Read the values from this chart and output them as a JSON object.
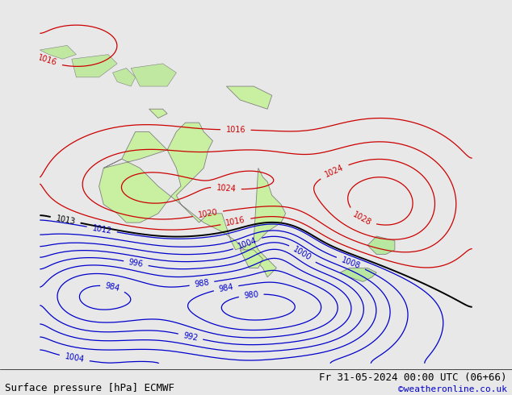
{
  "title_left": "Surface pressure [hPa] ECMWF",
  "title_right": "Fr 31-05-2024 00:00 UTC (06+66)",
  "credit": "©weatheronline.co.uk",
  "bg_color": "#e8e8e8",
  "land_color": "#c8f0a0",
  "land_edge_color": "#808080",
  "isobar_red_color": "#cc0000",
  "isobar_blue_color": "#0000cc",
  "isobar_black_color": "#000000",
  "label_fontsize": 7,
  "title_fontsize": 9,
  "credit_fontsize": 8,
  "figsize": [
    6.34,
    4.9
  ],
  "dpi": 100,
  "lon_min": 100,
  "lon_max": 195,
  "lat_min": -65,
  "lat_max": 15,
  "pressure_centers": [
    {
      "lon": 123,
      "lat": -28,
      "amp": 13,
      "sx": 14,
      "sy": 9,
      "sign": 1
    },
    {
      "lon": 148,
      "lat": -24,
      "amp": 8,
      "sx": 9,
      "sy": 6,
      "sign": 1
    },
    {
      "lon": 175,
      "lat": -30,
      "amp": 18,
      "sx": 12,
      "sy": 10,
      "sign": 1
    },
    {
      "lon": 112,
      "lat": -50,
      "amp": 30,
      "sx": 14,
      "sy": 9,
      "sign": -1
    },
    {
      "lon": 143,
      "lat": -53,
      "amp": 28,
      "sx": 12,
      "sy": 8,
      "sign": -1
    },
    {
      "lon": 163,
      "lat": -52,
      "amp": 22,
      "sx": 11,
      "sy": 8,
      "sign": -1
    },
    {
      "lon": 152,
      "lat": -40,
      "amp": 10,
      "sx": 5,
      "sy": 4,
      "sign": -1
    },
    {
      "lon": 108,
      "lat": 5,
      "amp": 4,
      "sx": 12,
      "sy": 6,
      "sign": 1
    }
  ],
  "australia_lon": [
    114,
    118,
    121,
    124,
    128,
    122,
    114,
    113,
    114,
    117,
    119,
    122,
    126,
    129,
    131,
    130,
    128,
    130,
    132,
    135,
    136,
    138,
    137,
    136,
    130,
    131,
    135,
    137,
    140,
    142,
    143,
    148,
    150,
    153,
    154,
    153,
    151,
    150,
    149,
    148,
    147,
    148,
    150,
    152,
    150,
    149,
    147,
    145,
    143,
    140,
    136,
    131,
    126,
    122,
    118,
    114
  ],
  "australia_lat": [
    -22,
    -20,
    -14,
    -14,
    -18,
    -20,
    -22,
    -26,
    -30,
    -32,
    -34,
    -34,
    -32,
    -28,
    -26,
    -22,
    -18,
    -14,
    -12,
    -12,
    -14,
    -16,
    -18,
    -22,
    -28,
    -30,
    -34,
    -32,
    -32,
    -38,
    -40,
    -38,
    -36,
    -34,
    -32,
    -30,
    -28,
    -25,
    -24,
    -22,
    -38,
    -40,
    -42,
    -44,
    -46,
    -44,
    -42,
    -40,
    -38,
    -36,
    -34,
    -30,
    -26,
    -22,
    -20,
    -22
  ],
  "tasmania_lon": [
    144,
    147,
    149,
    148,
    146,
    144
  ],
  "tasmania_lat": [
    -40,
    -40,
    -42,
    -44,
    -44,
    -40
  ],
  "nz_north_lon": [
    174,
    178,
    178,
    176,
    174,
    172,
    174
  ],
  "nz_north_lat": [
    -37,
    -38,
    -40,
    -41,
    -41,
    -39,
    -37
  ],
  "nz_south_lon": [
    168,
    172,
    174,
    173,
    171,
    168,
    166,
    168
  ],
  "nz_south_lat": [
    -44,
    -44,
    -45,
    -46,
    -47,
    -46,
    -45,
    -44
  ],
  "png_lon": [
    141,
    147,
    151,
    150,
    147,
    144,
    141
  ],
  "png_lat": [
    -4,
    -4,
    -6,
    -9,
    -8,
    -7,
    -4
  ],
  "timor_lon": [
    124,
    127,
    128,
    126,
    124
  ],
  "timor_lat": [
    -9,
    -9,
    -10,
    -11,
    -9
  ],
  "islands_top": [
    {
      "lons": [
        100,
        106,
        108,
        105,
        102,
        100
      ],
      "lats": [
        4,
        5,
        3,
        2,
        3,
        4
      ]
    },
    {
      "lons": [
        107,
        115,
        117,
        113,
        108,
        107
      ],
      "lats": [
        2,
        3,
        1,
        -2,
        -2,
        2
      ]
    },
    {
      "lons": [
        116,
        119,
        121,
        120,
        117,
        116
      ],
      "lats": [
        -1,
        0,
        -2,
        -4,
        -3,
        -1
      ]
    },
    {
      "lons": [
        120,
        127,
        130,
        128,
        122,
        120
      ],
      "lats": [
        0,
        1,
        -1,
        -4,
        -4,
        0
      ]
    }
  ]
}
